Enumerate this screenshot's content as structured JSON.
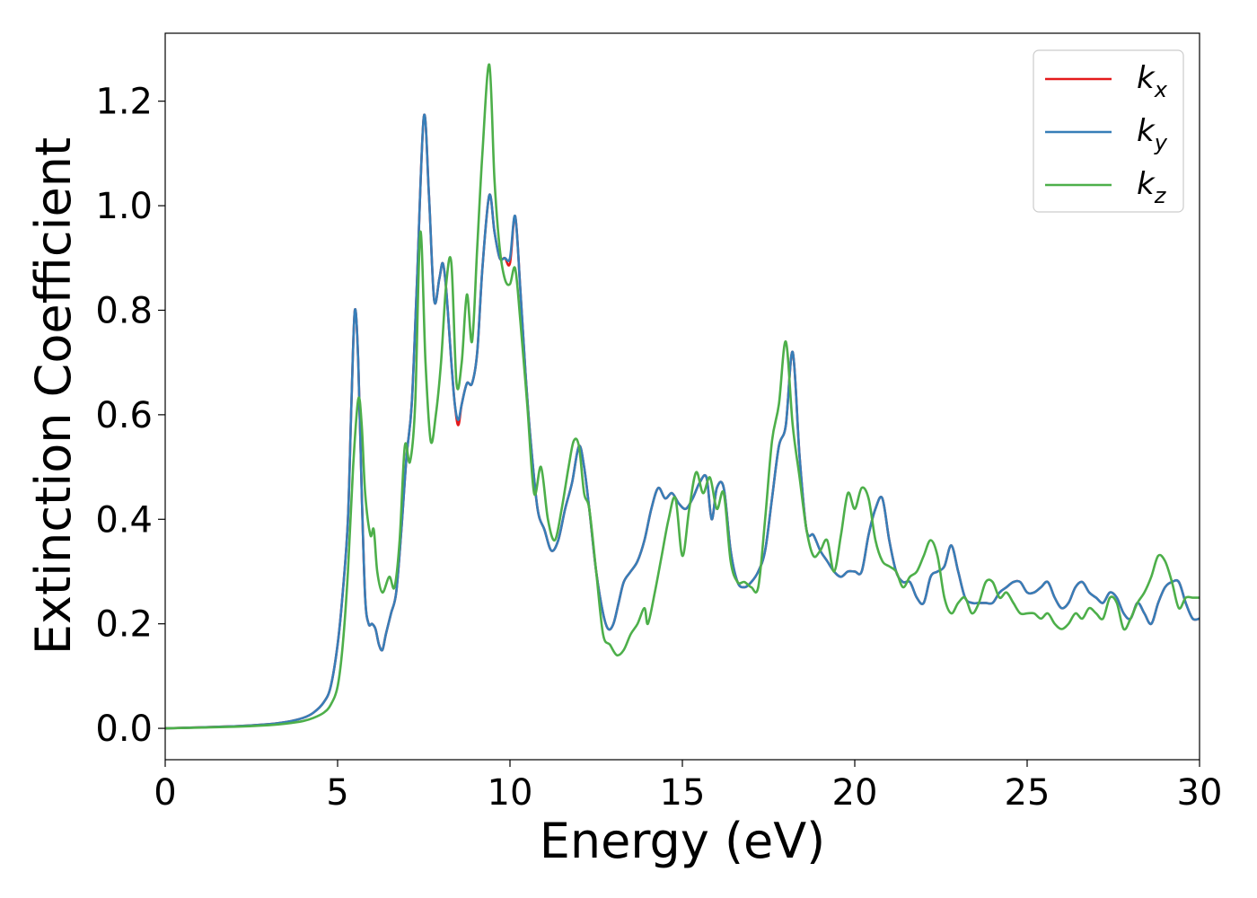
{
  "chart_data": {
    "type": "line",
    "xlabel": "Energy (eV)",
    "ylabel": "Extinction Coefficient",
    "xlim": [
      0,
      30
    ],
    "ylim": [
      -0.06,
      1.33
    ],
    "xticks": [
      0,
      5,
      10,
      15,
      20,
      25,
      30
    ],
    "xtick_labels": [
      "0",
      "5",
      "10",
      "15",
      "20",
      "25",
      "30"
    ],
    "yticks": [
      0.0,
      0.2,
      0.4,
      0.6,
      0.8,
      1.0,
      1.2
    ],
    "ytick_labels": [
      "0.0",
      "0.2",
      "0.4",
      "0.6",
      "0.8",
      "1.0",
      "1.2"
    ],
    "grid": false,
    "legend_position": "top-right",
    "series": [
      {
        "name": "k_x",
        "label_main": "k",
        "label_sub": "x",
        "color": "#e41a1c",
        "x": [
          0,
          2,
          3,
          3.5,
          4,
          4.3,
          4.6,
          4.8,
          5.0,
          5.15,
          5.3,
          5.4,
          5.5,
          5.6,
          5.7,
          5.8,
          5.9,
          6.0,
          6.1,
          6.2,
          6.3,
          6.4,
          6.55,
          6.7,
          6.85,
          7.0,
          7.15,
          7.3,
          7.5,
          7.65,
          7.8,
          7.95,
          8.05,
          8.15,
          8.3,
          8.4,
          8.5,
          8.6,
          8.75,
          8.9,
          9.05,
          9.2,
          9.4,
          9.55,
          9.7,
          9.85,
          10.0,
          10.15,
          10.3,
          10.45,
          10.6,
          10.8,
          11.0,
          11.2,
          11.4,
          11.6,
          11.8,
          12.0,
          12.15,
          12.3,
          12.5,
          12.7,
          12.85,
          13.0,
          13.15,
          13.3,
          13.5,
          13.7,
          13.9,
          14.1,
          14.3,
          14.5,
          14.7,
          14.9,
          15.1,
          15.3,
          15.5,
          15.7,
          15.85,
          16.0,
          16.2,
          16.4,
          16.6,
          16.8,
          17.0,
          17.2,
          17.4,
          17.6,
          17.8,
          18.0,
          18.2,
          18.4,
          18.6,
          18.8,
          19.0,
          19.2,
          19.4,
          19.6,
          19.8,
          20.0,
          20.2,
          20.4,
          20.6,
          20.8,
          21.0,
          21.2,
          21.4,
          21.6,
          21.8,
          22.0,
          22.2,
          22.4,
          22.6,
          22.8,
          23.0,
          23.2,
          23.4,
          23.6,
          23.8,
          24.0,
          24.2,
          24.4,
          24.6,
          24.8,
          25.0,
          25.2,
          25.4,
          25.6,
          25.8,
          26.0,
          26.2,
          26.4,
          26.6,
          26.8,
          27.0,
          27.2,
          27.4,
          27.6,
          27.8,
          28.0,
          28.2,
          28.4,
          28.6,
          28.8,
          29.0,
          29.2,
          29.4,
          29.6,
          29.8,
          30.0
        ],
        "y": [
          0.0,
          0.004,
          0.008,
          0.012,
          0.02,
          0.03,
          0.05,
          0.08,
          0.16,
          0.26,
          0.4,
          0.62,
          0.8,
          0.7,
          0.45,
          0.25,
          0.2,
          0.2,
          0.19,
          0.16,
          0.15,
          0.18,
          0.22,
          0.26,
          0.38,
          0.52,
          0.62,
          0.85,
          1.17,
          1.02,
          0.82,
          0.86,
          0.89,
          0.84,
          0.7,
          0.62,
          0.58,
          0.62,
          0.66,
          0.66,
          0.72,
          0.88,
          1.02,
          0.95,
          0.9,
          0.9,
          0.89,
          0.98,
          0.84,
          0.68,
          0.55,
          0.42,
          0.38,
          0.34,
          0.36,
          0.42,
          0.47,
          0.54,
          0.5,
          0.42,
          0.3,
          0.22,
          0.19,
          0.2,
          0.24,
          0.28,
          0.3,
          0.32,
          0.36,
          0.42,
          0.46,
          0.44,
          0.45,
          0.43,
          0.42,
          0.44,
          0.47,
          0.48,
          0.4,
          0.46,
          0.46,
          0.34,
          0.28,
          0.27,
          0.28,
          0.3,
          0.34,
          0.44,
          0.54,
          0.58,
          0.72,
          0.52,
          0.38,
          0.37,
          0.34,
          0.32,
          0.3,
          0.29,
          0.3,
          0.3,
          0.3,
          0.37,
          0.42,
          0.44,
          0.36,
          0.3,
          0.28,
          0.28,
          0.25,
          0.24,
          0.29,
          0.3,
          0.31,
          0.35,
          0.3,
          0.25,
          0.24,
          0.24,
          0.24,
          0.24,
          0.26,
          0.27,
          0.28,
          0.28,
          0.26,
          0.26,
          0.27,
          0.28,
          0.25,
          0.23,
          0.24,
          0.27,
          0.28,
          0.26,
          0.25,
          0.24,
          0.26,
          0.25,
          0.22,
          0.21,
          0.24,
          0.22,
          0.2,
          0.24,
          0.27,
          0.28,
          0.28,
          0.24,
          0.21,
          0.21
        ]
      },
      {
        "name": "k_y",
        "label_main": "k",
        "label_sub": "y",
        "color": "#377eb8",
        "x": [
          0,
          2,
          3,
          3.5,
          4,
          4.3,
          4.6,
          4.8,
          5.0,
          5.15,
          5.3,
          5.4,
          5.5,
          5.6,
          5.7,
          5.8,
          5.9,
          6.0,
          6.1,
          6.2,
          6.3,
          6.4,
          6.55,
          6.7,
          6.85,
          7.0,
          7.15,
          7.3,
          7.5,
          7.65,
          7.8,
          7.95,
          8.05,
          8.15,
          8.3,
          8.4,
          8.5,
          8.6,
          8.75,
          8.9,
          9.05,
          9.2,
          9.4,
          9.55,
          9.7,
          9.85,
          10.0,
          10.15,
          10.3,
          10.45,
          10.6,
          10.8,
          11.0,
          11.2,
          11.4,
          11.6,
          11.8,
          12.0,
          12.15,
          12.3,
          12.5,
          12.7,
          12.85,
          13.0,
          13.15,
          13.3,
          13.5,
          13.7,
          13.9,
          14.1,
          14.3,
          14.5,
          14.7,
          14.9,
          15.1,
          15.3,
          15.5,
          15.7,
          15.85,
          16.0,
          16.2,
          16.4,
          16.6,
          16.8,
          17.0,
          17.2,
          17.4,
          17.6,
          17.8,
          18.0,
          18.2,
          18.4,
          18.6,
          18.8,
          19.0,
          19.2,
          19.4,
          19.6,
          19.8,
          20.0,
          20.2,
          20.4,
          20.6,
          20.8,
          21.0,
          21.2,
          21.4,
          21.6,
          21.8,
          22.0,
          22.2,
          22.4,
          22.6,
          22.8,
          23.0,
          23.2,
          23.4,
          23.6,
          23.8,
          24.0,
          24.2,
          24.4,
          24.6,
          24.8,
          25.0,
          25.2,
          25.4,
          25.6,
          25.8,
          26.0,
          26.2,
          26.4,
          26.6,
          26.8,
          27.0,
          27.2,
          27.4,
          27.6,
          27.8,
          28.0,
          28.2,
          28.4,
          28.6,
          28.8,
          29.0,
          29.2,
          29.4,
          29.6,
          29.8,
          30.0
        ],
        "y": [
          0.0,
          0.004,
          0.008,
          0.012,
          0.02,
          0.03,
          0.05,
          0.08,
          0.16,
          0.26,
          0.4,
          0.62,
          0.8,
          0.7,
          0.45,
          0.25,
          0.2,
          0.2,
          0.19,
          0.16,
          0.15,
          0.18,
          0.22,
          0.26,
          0.38,
          0.52,
          0.62,
          0.85,
          1.17,
          1.02,
          0.82,
          0.86,
          0.89,
          0.84,
          0.7,
          0.62,
          0.59,
          0.62,
          0.66,
          0.66,
          0.72,
          0.88,
          1.02,
          0.95,
          0.9,
          0.9,
          0.9,
          0.98,
          0.84,
          0.68,
          0.55,
          0.42,
          0.38,
          0.34,
          0.36,
          0.42,
          0.47,
          0.54,
          0.5,
          0.42,
          0.3,
          0.22,
          0.19,
          0.2,
          0.24,
          0.28,
          0.3,
          0.32,
          0.36,
          0.42,
          0.46,
          0.44,
          0.45,
          0.43,
          0.42,
          0.44,
          0.47,
          0.48,
          0.4,
          0.46,
          0.46,
          0.34,
          0.28,
          0.27,
          0.28,
          0.3,
          0.34,
          0.44,
          0.54,
          0.58,
          0.72,
          0.52,
          0.38,
          0.37,
          0.34,
          0.32,
          0.3,
          0.29,
          0.3,
          0.3,
          0.3,
          0.37,
          0.42,
          0.44,
          0.36,
          0.3,
          0.28,
          0.28,
          0.25,
          0.24,
          0.29,
          0.3,
          0.31,
          0.35,
          0.3,
          0.25,
          0.24,
          0.24,
          0.24,
          0.24,
          0.26,
          0.27,
          0.28,
          0.28,
          0.26,
          0.26,
          0.27,
          0.28,
          0.25,
          0.23,
          0.24,
          0.27,
          0.28,
          0.26,
          0.25,
          0.24,
          0.26,
          0.25,
          0.22,
          0.21,
          0.24,
          0.22,
          0.2,
          0.24,
          0.27,
          0.28,
          0.28,
          0.24,
          0.21,
          0.21
        ]
      },
      {
        "name": "k_z",
        "label_main": "k",
        "label_sub": "z",
        "color": "#4daf4a",
        "x": [
          0,
          2,
          3,
          3.5,
          4,
          4.3,
          4.6,
          4.8,
          5.0,
          5.15,
          5.3,
          5.45,
          5.6,
          5.7,
          5.8,
          5.95,
          6.05,
          6.15,
          6.3,
          6.5,
          6.65,
          6.8,
          6.95,
          7.1,
          7.25,
          7.4,
          7.55,
          7.7,
          7.85,
          8.0,
          8.15,
          8.3,
          8.45,
          8.6,
          8.75,
          8.9,
          9.05,
          9.2,
          9.4,
          9.55,
          9.7,
          9.85,
          10.0,
          10.15,
          10.3,
          10.5,
          10.7,
          10.9,
          11.1,
          11.3,
          11.5,
          11.7,
          11.85,
          12.0,
          12.15,
          12.3,
          12.5,
          12.7,
          12.9,
          13.1,
          13.3,
          13.5,
          13.7,
          13.9,
          14.0,
          14.2,
          14.4,
          14.6,
          14.8,
          15.0,
          15.2,
          15.4,
          15.6,
          15.8,
          16.0,
          16.2,
          16.4,
          16.6,
          16.8,
          17.0,
          17.2,
          17.4,
          17.6,
          17.8,
          18.0,
          18.2,
          18.4,
          18.6,
          18.8,
          19.0,
          19.2,
          19.4,
          19.6,
          19.8,
          20.0,
          20.2,
          20.4,
          20.6,
          20.8,
          21.0,
          21.2,
          21.4,
          21.6,
          21.8,
          22.0,
          22.2,
          22.4,
          22.6,
          22.8,
          23.0,
          23.2,
          23.4,
          23.6,
          23.8,
          24.0,
          24.2,
          24.4,
          24.6,
          24.8,
          25.0,
          25.2,
          25.4,
          25.6,
          25.8,
          26.0,
          26.2,
          26.4,
          26.6,
          26.8,
          27.0,
          27.2,
          27.4,
          27.6,
          27.8,
          28.0,
          28.2,
          28.4,
          28.6,
          28.8,
          29.0,
          29.2,
          29.4,
          29.6,
          29.8,
          30.0
        ],
        "y": [
          0.0,
          0.003,
          0.006,
          0.009,
          0.014,
          0.02,
          0.03,
          0.045,
          0.08,
          0.16,
          0.3,
          0.5,
          0.63,
          0.58,
          0.45,
          0.37,
          0.38,
          0.3,
          0.26,
          0.29,
          0.27,
          0.36,
          0.54,
          0.51,
          0.62,
          0.95,
          0.7,
          0.55,
          0.6,
          0.7,
          0.85,
          0.89,
          0.66,
          0.7,
          0.83,
          0.74,
          0.92,
          1.1,
          1.27,
          1.05,
          0.92,
          0.86,
          0.85,
          0.88,
          0.78,
          0.62,
          0.45,
          0.5,
          0.4,
          0.36,
          0.42,
          0.5,
          0.55,
          0.54,
          0.45,
          0.42,
          0.3,
          0.18,
          0.16,
          0.14,
          0.15,
          0.18,
          0.2,
          0.23,
          0.2,
          0.26,
          0.33,
          0.4,
          0.44,
          0.33,
          0.42,
          0.49,
          0.45,
          0.48,
          0.42,
          0.45,
          0.32,
          0.28,
          0.28,
          0.27,
          0.27,
          0.4,
          0.55,
          0.62,
          0.74,
          0.58,
          0.48,
          0.38,
          0.33,
          0.34,
          0.36,
          0.3,
          0.37,
          0.45,
          0.42,
          0.46,
          0.44,
          0.36,
          0.32,
          0.31,
          0.3,
          0.27,
          0.29,
          0.3,
          0.33,
          0.36,
          0.33,
          0.25,
          0.22,
          0.24,
          0.25,
          0.22,
          0.24,
          0.28,
          0.28,
          0.25,
          0.26,
          0.24,
          0.22,
          0.22,
          0.22,
          0.21,
          0.22,
          0.2,
          0.19,
          0.2,
          0.22,
          0.21,
          0.23,
          0.22,
          0.21,
          0.25,
          0.24,
          0.19,
          0.21,
          0.24,
          0.26,
          0.29,
          0.33,
          0.32,
          0.28,
          0.23,
          0.25,
          0.25,
          0.25
        ]
      }
    ]
  }
}
